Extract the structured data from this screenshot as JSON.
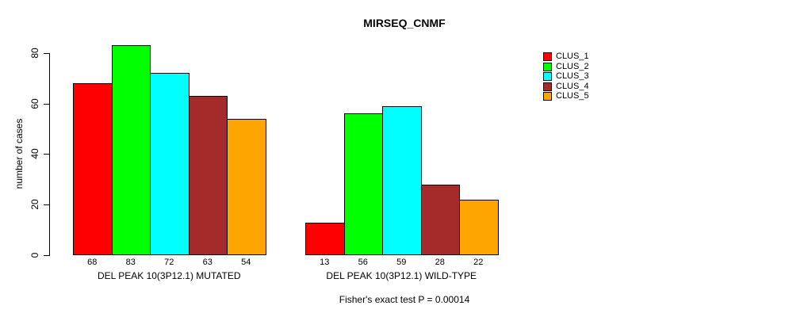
{
  "chart_data": {
    "type": "bar",
    "title": "MIRSEQ_CNMF",
    "ylabel": "number of cases",
    "xlabel": "",
    "ylim": [
      0,
      85
    ],
    "yticks": [
      0,
      20,
      40,
      60,
      80
    ],
    "grid": false,
    "legend_position": "top-right",
    "bar_value_labels_shown": true,
    "categories": [
      "DEL PEAK 10(3P12.1) MUTATED",
      "DEL PEAK 10(3P12.1) WILD-TYPE"
    ],
    "series": [
      {
        "name": "CLUS_1",
        "color": "#FF0000",
        "values": [
          68,
          13
        ]
      },
      {
        "name": "CLUS_2",
        "color": "#00FF00",
        "values": [
          83,
          56
        ]
      },
      {
        "name": "CLUS_3",
        "color": "#00FFFF",
        "values": [
          72,
          59
        ]
      },
      {
        "name": "CLUS_4",
        "color": "#A52A2A",
        "values": [
          63,
          28
        ]
      },
      {
        "name": "CLUS_5",
        "color": "#FFA500",
        "values": [
          54,
          22
        ]
      }
    ],
    "footnote": "Fisher's exact test P = 0.00014"
  }
}
